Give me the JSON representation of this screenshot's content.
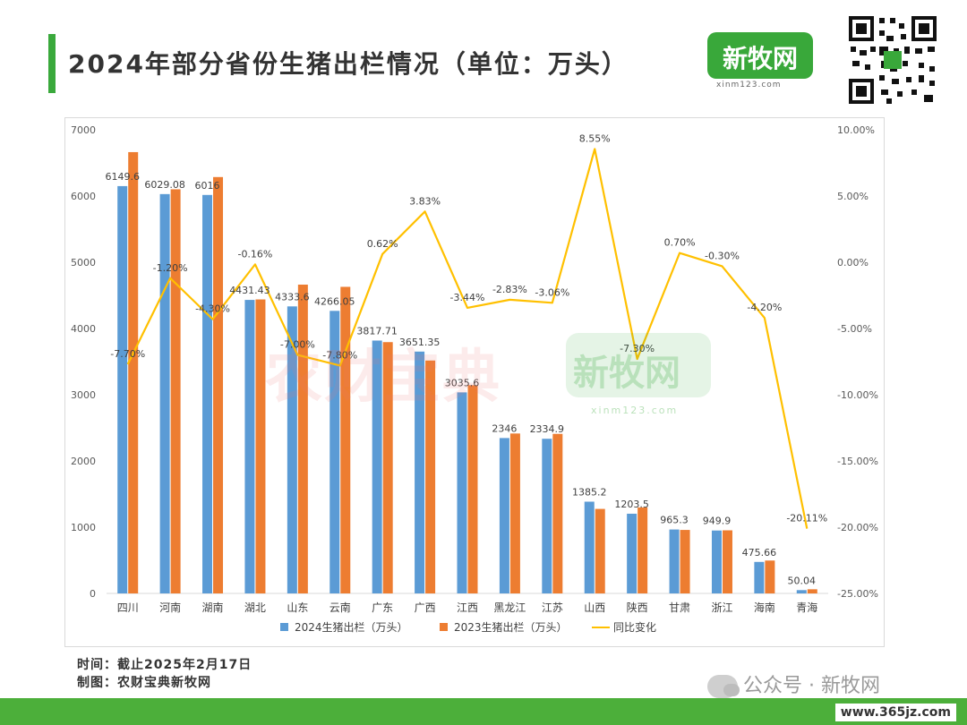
{
  "header": {
    "title": "2024年部分省份生猪出栏情况（单位：万头）"
  },
  "logo": {
    "text": "新牧网",
    "url": "xinm123.com"
  },
  "watermarks": {
    "left": "农财宝典",
    "right": "新牧网",
    "right_url": "xinm123.com"
  },
  "footer": {
    "time": "时间：截止2025年2月17日",
    "made_by": "制图：农财宝典新牧网"
  },
  "wechat": {
    "label": "公众号 · 新牧网"
  },
  "site": {
    "label": "www.365jz.com"
  },
  "colors": {
    "series_2024": "#5b9bd5",
    "series_2023": "#ed7d31",
    "series_yoy": "#ffc000",
    "brand_green": "#3aa93c"
  },
  "chart_data": {
    "type": "bar",
    "categories": [
      "四川",
      "河南",
      "湖南",
      "湖北",
      "山东",
      "云南",
      "广东",
      "广西",
      "江西",
      "黑龙江",
      "江苏",
      "山西",
      "陕西",
      "甘肃",
      "浙江",
      "海南",
      "青海"
    ],
    "series": [
      {
        "name": "2024生猪出栏（万头）",
        "type": "bar",
        "values": [
          6149.6,
          6029.08,
          6016,
          4431.43,
          4333.6,
          4266.05,
          3817.71,
          3651.35,
          3035.6,
          2346,
          2334.9,
          1385.2,
          1203.5,
          965.3,
          949.9,
          475.66,
          50.04
        ],
        "labels": [
          "6149.6",
          "6029.08",
          "6016",
          "4431.43",
          "4333.6",
          "4266.05",
          "3817.71",
          "3651.35",
          "3035.6",
          "2346",
          "2334.9",
          "1385.2",
          "1203.5",
          "965.3",
          "949.9",
          "475.66",
          "50.04"
        ]
      },
      {
        "name": "2023生猪出栏（万头）",
        "type": "bar",
        "values": [
          6662.7,
          6101.9,
          6286.3,
          4438.5,
          4662.2,
          4628.8,
          3794.1,
          3516.6,
          3143.7,
          2414.5,
          2409,
          1275.9,
          1298.2,
          958.6,
          952.8,
          496.5,
          62.6
        ]
      },
      {
        "name": "同比变化",
        "type": "line",
        "axis": "right",
        "values": [
          -7.7,
          -1.2,
          -4.3,
          -0.16,
          -7.0,
          -7.8,
          0.62,
          3.83,
          -3.44,
          -2.83,
          -3.06,
          8.55,
          -7.3,
          0.7,
          -0.3,
          -4.2,
          -20.11
        ],
        "labels": [
          "-7.70%",
          "-1.20%",
          "-4.30%",
          "-0.16%",
          "-7.00%",
          "-7.80%",
          "0.62%",
          "3.83%",
          "-3.44%",
          "-2.83%",
          "-3.06%",
          "8.55%",
          "-7.30%",
          "0.70%",
          "-0.30%",
          "-4.20%",
          "-20.11%"
        ]
      }
    ],
    "y_left": {
      "min": 0,
      "max": 7000,
      "ticks": [
        "0",
        "1000",
        "2000",
        "3000",
        "4000",
        "5000",
        "6000",
        "7000"
      ]
    },
    "y_right": {
      "min": -25,
      "max": 10,
      "ticks": [
        "10.00%",
        "5.00%",
        "0.00%",
        "-5.00%",
        "-10.00%",
        "-15.00%",
        "-20.00%",
        "-25.00%"
      ]
    },
    "grid": false,
    "legend": "bottom"
  }
}
